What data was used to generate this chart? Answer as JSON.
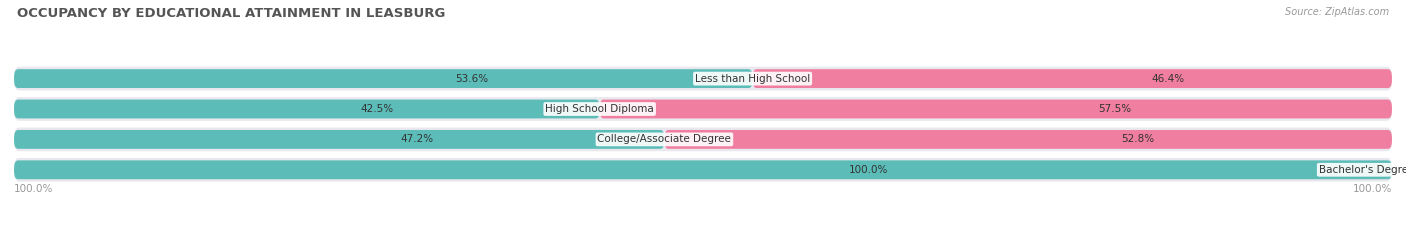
{
  "title": "OCCUPANCY BY EDUCATIONAL ATTAINMENT IN LEASBURG",
  "source": "Source: ZipAtlas.com",
  "categories": [
    "Less than High School",
    "High School Diploma",
    "College/Associate Degree",
    "Bachelor's Degree or higher"
  ],
  "owner_pct": [
    53.6,
    42.5,
    47.2,
    100.0
  ],
  "renter_pct": [
    46.4,
    57.5,
    52.8,
    0.0
  ],
  "owner_color": "#5bbcb8",
  "renter_color": "#f07ea0",
  "bg_color": "#ffffff",
  "row_bg_odd": "#f0f0f4",
  "row_bg_even": "#e8e8ee",
  "title_color": "#555555",
  "source_color": "#999999",
  "pct_label_color": "#555555",
  "title_fontsize": 9.5,
  "label_fontsize": 7.5,
  "cat_fontsize": 7.5,
  "legend_fontsize": 8,
  "source_fontsize": 7,
  "axis_label_color": "#999999"
}
